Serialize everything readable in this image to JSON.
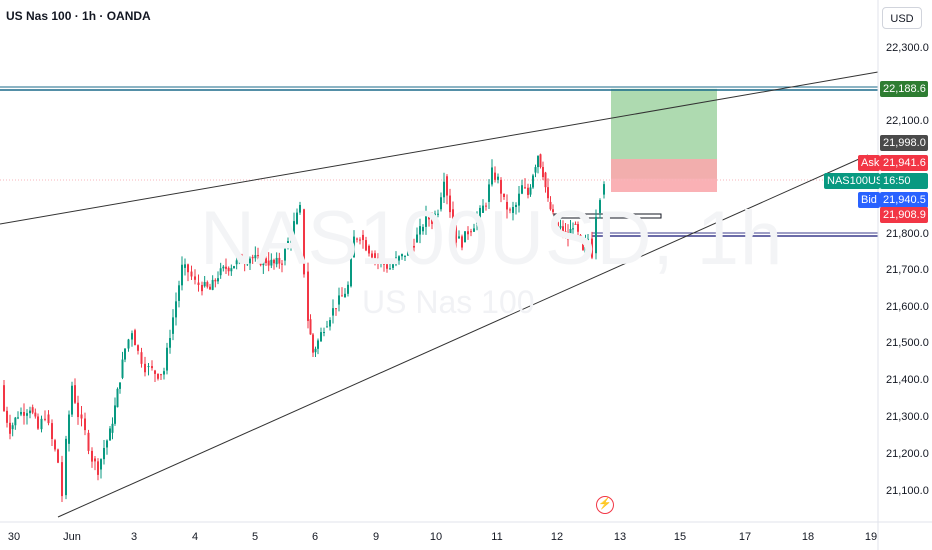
{
  "header": {
    "title": "US Nas 100 · 1h · OANDA"
  },
  "currency_button": "USD",
  "watermark": {
    "main": "NAS100USD, 1h",
    "sub": "US Nas 100"
  },
  "price_axis": {
    "ticks": [
      "22,300.0",
      "22,100.0",
      "21,800.0",
      "21,700.0",
      "21,600.0",
      "21,500.0",
      "21,400.0",
      "21,300.0",
      "21,200.0",
      "21,100.0"
    ]
  },
  "time_axis": {
    "ticks": [
      "30",
      "Jun",
      "3",
      "4",
      "5",
      "6",
      "9",
      "10",
      "11",
      "12",
      "13",
      "15",
      "17",
      "18",
      "19"
    ]
  },
  "price_tags": {
    "target": "22,188.6",
    "level_21998": "21,998.0",
    "ask_label": "Ask",
    "ask": "21,941.6",
    "symbol": "NAS100USD",
    "countdown": "16:50",
    "bid_label": "Bid",
    "bid": "21,940.5",
    "stop": "21,908.9"
  },
  "colors": {
    "up": "#089981",
    "down": "#f23645",
    "target_zone": "#a5d6a7",
    "stop_zone": "#f9a8ad",
    "resistance_line": "#1a6a8a",
    "support_line": "#3c3c8c",
    "target_tag": "#2e7d32",
    "level_tag": "#4a4a4a",
    "symbol_tag": "#089981",
    "bid_tag": "#2962ff"
  },
  "chart_data": {
    "type": "candlestick",
    "symbol": "US Nas 100",
    "timeframe": "1h",
    "x_ticks": [
      "30",
      "Jun",
      "3",
      "4",
      "5",
      "6",
      "9",
      "10",
      "11",
      "12",
      "13",
      "15",
      "17",
      "18",
      "19"
    ],
    "y_range": [
      21050,
      22350
    ],
    "y_ticks": [
      21100,
      21200,
      21300,
      21400,
      21500,
      21600,
      21700,
      21800,
      22100,
      22300
    ],
    "horizontal_levels": [
      22188.6,
      21998.0,
      21908.9,
      21800
    ],
    "last_price": {
      "ask": 21941.6,
      "bid": 21940.5
    },
    "trend_lines": [
      {
        "name": "upper",
        "from": {
          "x": "30",
          "y": 21870
        },
        "to": {
          "x": "19",
          "y": 22250
        }
      },
      {
        "name": "lower",
        "from": {
          "x": "Jun",
          "y": 21060
        },
        "to": {
          "x": "19",
          "y": 21980
        }
      }
    ],
    "position": {
      "side": "long",
      "entry": 21998.0,
      "stop": 21908.9,
      "target": 22188.6
    },
    "ohlc_path": [
      {
        "x": 0,
        "close": 21380
      },
      {
        "x": 4,
        "close": 21310
      },
      {
        "x": 10,
        "close": 21260
      },
      {
        "x": 18,
        "close": 21300
      },
      {
        "x": 30,
        "close": 21320
      },
      {
        "x": 38,
        "close": 21260
      },
      {
        "x": 45,
        "close": 21300
      },
      {
        "x": 52,
        "close": 21230
      },
      {
        "x": 58,
        "close": 21170
      },
      {
        "x": 62,
        "close": 21080
      },
      {
        "x": 66,
        "close": 21220
      },
      {
        "x": 72,
        "close": 21380
      },
      {
        "x": 78,
        "close": 21300
      },
      {
        "x": 85,
        "close": 21250
      },
      {
        "x": 92,
        "close": 21180
      },
      {
        "x": 98,
        "close": 21150
      },
      {
        "x": 104,
        "close": 21210
      },
      {
        "x": 110,
        "close": 21250
      },
      {
        "x": 115,
        "close": 21320
      },
      {
        "x": 120,
        "close": 21400
      },
      {
        "x": 125,
        "close": 21480
      },
      {
        "x": 132,
        "close": 21530
      },
      {
        "x": 138,
        "close": 21470
      },
      {
        "x": 145,
        "close": 21430
      },
      {
        "x": 152,
        "close": 21420
      },
      {
        "x": 158,
        "close": 21410
      },
      {
        "x": 164,
        "close": 21420
      },
      {
        "x": 170,
        "close": 21520
      },
      {
        "x": 176,
        "close": 21610
      },
      {
        "x": 182,
        "close": 21700
      },
      {
        "x": 188,
        "close": 21690
      },
      {
        "x": 195,
        "close": 21660
      },
      {
        "x": 202,
        "close": 21650
      },
      {
        "x": 210,
        "close": 21640
      },
      {
        "x": 218,
        "close": 21680
      },
      {
        "x": 226,
        "close": 21700
      },
      {
        "x": 234,
        "close": 21710
      },
      {
        "x": 242,
        "close": 21720
      },
      {
        "x": 250,
        "close": 21730
      },
      {
        "x": 258,
        "close": 21720
      },
      {
        "x": 266,
        "close": 21720
      },
      {
        "x": 274,
        "close": 21710
      },
      {
        "x": 282,
        "close": 21720
      },
      {
        "x": 288,
        "close": 21770
      },
      {
        "x": 294,
        "close": 21820
      },
      {
        "x": 300,
        "close": 21860
      },
      {
        "x": 304,
        "close": 21690
      },
      {
        "x": 308,
        "close": 21560
      },
      {
        "x": 313,
        "close": 21470
      },
      {
        "x": 318,
        "close": 21500
      },
      {
        "x": 324,
        "close": 21540
      },
      {
        "x": 330,
        "close": 21570
      },
      {
        "x": 336,
        "close": 21600
      },
      {
        "x": 342,
        "close": 21620
      },
      {
        "x": 348,
        "close": 21650
      },
      {
        "x": 354,
        "close": 21780
      },
      {
        "x": 360,
        "close": 21790
      },
      {
        "x": 366,
        "close": 21760
      },
      {
        "x": 372,
        "close": 21740
      },
      {
        "x": 378,
        "close": 21720
      },
      {
        "x": 384,
        "close": 21710
      },
      {
        "x": 390,
        "close": 21700
      },
      {
        "x": 396,
        "close": 21720
      },
      {
        "x": 402,
        "close": 21730
      },
      {
        "x": 408,
        "close": 21750
      },
      {
        "x": 414,
        "close": 21770
      },
      {
        "x": 420,
        "close": 21800
      },
      {
        "x": 426,
        "close": 21840
      },
      {
        "x": 432,
        "close": 21830
      },
      {
        "x": 438,
        "close": 21860
      },
      {
        "x": 444,
        "close": 21950
      },
      {
        "x": 450,
        "close": 21860
      },
      {
        "x": 456,
        "close": 21780
      },
      {
        "x": 462,
        "close": 21770
      },
      {
        "x": 468,
        "close": 21800
      },
      {
        "x": 474,
        "close": 21820
      },
      {
        "x": 480,
        "close": 21850
      },
      {
        "x": 486,
        "close": 21880
      },
      {
        "x": 492,
        "close": 21960
      },
      {
        "x": 498,
        "close": 21940
      },
      {
        "x": 504,
        "close": 21880
      },
      {
        "x": 510,
        "close": 21850
      },
      {
        "x": 516,
        "close": 21870
      },
      {
        "x": 522,
        "close": 21920
      },
      {
        "x": 528,
        "close": 21900
      },
      {
        "x": 533,
        "close": 21960
      },
      {
        "x": 538,
        "close": 22010
      },
      {
        "x": 543,
        "close": 21960
      },
      {
        "x": 548,
        "close": 21880
      },
      {
        "x": 553,
        "close": 21840
      },
      {
        "x": 558,
        "close": 21810
      },
      {
        "x": 563,
        "close": 21800
      },
      {
        "x": 568,
        "close": 21780
      },
      {
        "x": 573,
        "close": 21820
      },
      {
        "x": 578,
        "close": 21790
      },
      {
        "x": 583,
        "close": 21740
      },
      {
        "x": 588,
        "close": 21780
      },
      {
        "x": 592,
        "close": 21740
      },
      {
        "x": 596,
        "close": 21850
      },
      {
        "x": 600,
        "close": 21900
      },
      {
        "x": 604,
        "close": 21940
      }
    ]
  }
}
